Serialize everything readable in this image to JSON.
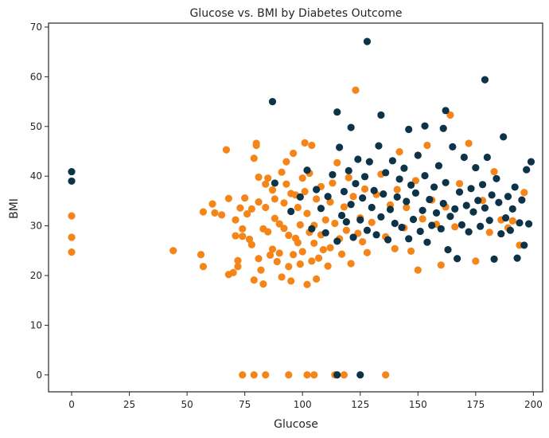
{
  "chart_data": {
    "type": "scatter",
    "title": "Glucose vs. BMI by Diabetes Outcome",
    "xlabel": "Glucose",
    "ylabel": "BMI",
    "xlim": [
      -10,
      204
    ],
    "ylim": [
      -3.4,
      70.8
    ],
    "xticks": [
      0,
      25,
      50,
      75,
      100,
      125,
      150,
      175,
      200
    ],
    "yticks": [
      0,
      10,
      20,
      30,
      40,
      50,
      60,
      70
    ],
    "grid": false,
    "legend": "none",
    "series": [
      {
        "color": "#f58518",
        "points": [
          [
            0,
            32
          ],
          [
            0,
            27.7
          ],
          [
            0,
            24.7
          ],
          [
            44,
            25
          ],
          [
            56,
            24.2
          ],
          [
            57,
            21.8
          ],
          [
            57,
            32.8
          ],
          [
            61,
            34.4
          ],
          [
            62,
            32.6
          ],
          [
            65,
            32.2
          ],
          [
            67,
            45.3
          ],
          [
            68,
            20.2
          ],
          [
            68,
            35.5
          ],
          [
            70,
            20.6
          ],
          [
            71,
            28
          ],
          [
            71,
            31.2
          ],
          [
            72,
            21.8
          ],
          [
            72,
            23
          ],
          [
            73,
            33.6
          ],
          [
            74,
            29.4
          ],
          [
            74,
            27.9
          ],
          [
            75,
            35.6
          ],
          [
            76,
            32.4
          ],
          [
            77,
            27.3
          ],
          [
            78,
            33.4
          ],
          [
            78,
            26.2
          ],
          [
            79,
            43.6
          ],
          [
            79,
            19.1
          ],
          [
            80,
            46.6
          ],
          [
            80,
            46.2
          ],
          [
            81,
            39.8
          ],
          [
            81,
            34.8
          ],
          [
            81,
            23.4
          ],
          [
            82,
            21.1
          ],
          [
            83,
            18.3
          ],
          [
            83,
            29.4
          ],
          [
            84,
            33.7
          ],
          [
            84,
            38.4
          ],
          [
            85,
            39.6
          ],
          [
            85,
            28.8
          ],
          [
            86,
            24.1
          ],
          [
            87,
            25.3
          ],
          [
            87,
            37.2
          ],
          [
            88,
            35.4
          ],
          [
            88,
            31.5
          ],
          [
            89,
            22.8
          ],
          [
            90,
            24.5
          ],
          [
            90,
            30.4
          ],
          [
            91,
            40.8
          ],
          [
            91,
            19.7
          ],
          [
            92,
            34.6
          ],
          [
            92,
            29.5
          ],
          [
            93,
            38.4
          ],
          [
            93,
            42.9
          ],
          [
            94,
            21.8
          ],
          [
            94,
            28.1
          ],
          [
            95,
            36.5
          ],
          [
            95,
            18.9
          ],
          [
            96,
            24.2
          ],
          [
            96,
            44.6
          ],
          [
            97,
            36.2
          ],
          [
            97,
            27.5
          ],
          [
            98,
            26.6
          ],
          [
            98,
            33.7
          ],
          [
            99,
            22.3
          ],
          [
            99,
            30.2
          ],
          [
            100,
            39.6
          ],
          [
            100,
            24.8
          ],
          [
            101,
            46.7
          ],
          [
            101,
            36.9
          ],
          [
            102,
            18.2
          ],
          [
            102,
            32.5
          ],
          [
            103,
            28.7
          ],
          [
            103,
            40.6
          ],
          [
            104,
            46.2
          ],
          [
            104,
            22.9
          ],
          [
            105,
            30.1
          ],
          [
            105,
            26.5
          ],
          [
            106,
            35.4
          ],
          [
            106,
            19.3
          ],
          [
            107,
            23.5
          ],
          [
            108,
            37.9
          ],
          [
            108,
            28.2
          ],
          [
            109,
            25.2
          ],
          [
            110,
            31.2
          ],
          [
            111,
            21.9
          ],
          [
            112,
            34.8
          ],
          [
            112,
            25.6
          ],
          [
            113,
            38.6
          ],
          [
            114,
            30.5
          ],
          [
            115,
            42.7
          ],
          [
            116,
            27.4
          ],
          [
            117,
            24.3
          ],
          [
            118,
            33.8
          ],
          [
            119,
            29.1
          ],
          [
            120,
            39.7
          ],
          [
            121,
            22.4
          ],
          [
            122,
            35.9
          ],
          [
            123,
            57.3
          ],
          [
            124,
            28.5
          ],
          [
            125,
            31.6
          ],
          [
            126,
            26.8
          ],
          [
            127,
            37.4
          ],
          [
            128,
            24.6
          ],
          [
            130,
            30.7
          ],
          [
            132,
            36.3
          ],
          [
            134,
            40.4
          ],
          [
            136,
            27.8
          ],
          [
            138,
            34.2
          ],
          [
            140,
            25.4
          ],
          [
            141,
            37.3
          ],
          [
            142,
            44.9
          ],
          [
            144,
            29.6
          ],
          [
            145,
            33.7
          ],
          [
            147,
            24.9
          ],
          [
            149,
            39.1
          ],
          [
            150,
            21.1
          ],
          [
            152,
            31.4
          ],
          [
            154,
            46.2
          ],
          [
            156,
            35.2
          ],
          [
            158,
            30.3
          ],
          [
            160,
            22.1
          ],
          [
            162,
            33.8
          ],
          [
            164,
            52.3
          ],
          [
            166,
            29.8
          ],
          [
            168,
            38.5
          ],
          [
            172,
            46.6
          ],
          [
            175,
            22.9
          ],
          [
            178,
            35.1
          ],
          [
            181,
            28.7
          ],
          [
            183,
            40.9
          ],
          [
            186,
            31.2
          ],
          [
            189,
            29.6
          ],
          [
            191,
            31.0
          ],
          [
            194,
            26.1
          ],
          [
            196,
            36.7
          ],
          [
            74,
            0
          ],
          [
            79,
            0
          ],
          [
            84,
            0
          ],
          [
            94,
            0
          ],
          [
            102,
            0
          ],
          [
            105,
            0
          ],
          [
            114,
            0
          ],
          [
            118,
            0
          ],
          [
            136,
            0
          ]
        ]
      },
      {
        "color": "#0d3349",
        "points": [
          [
            0,
            40.9
          ],
          [
            0,
            39
          ],
          [
            87,
            55
          ],
          [
            115,
            52.9
          ],
          [
            121,
            49.8
          ],
          [
            128,
            67.1
          ],
          [
            134,
            52.3
          ],
          [
            146,
            49.4
          ],
          [
            153,
            50.1
          ],
          [
            161,
            49.6
          ],
          [
            162,
            53.2
          ],
          [
            179,
            59.4
          ],
          [
            88,
            38.6
          ],
          [
            95,
            32.9
          ],
          [
            99,
            35.8
          ],
          [
            102,
            41.2
          ],
          [
            104,
            29.4
          ],
          [
            106,
            37.3
          ],
          [
            108,
            33.5
          ],
          [
            110,
            28.6
          ],
          [
            111,
            35.9
          ],
          [
            113,
            40.3
          ],
          [
            115,
            26.9
          ],
          [
            116,
            45.8
          ],
          [
            117,
            32.1
          ],
          [
            118,
            36.9
          ],
          [
            119,
            30.8
          ],
          [
            120,
            41.1
          ],
          [
            121,
            34.3
          ],
          [
            122,
            27.7
          ],
          [
            123,
            38.5
          ],
          [
            124,
            43.4
          ],
          [
            125,
            31.2
          ],
          [
            126,
            35.6
          ],
          [
            127,
            39.9
          ],
          [
            128,
            29.1
          ],
          [
            129,
            42.9
          ],
          [
            130,
            33.7
          ],
          [
            131,
            37.1
          ],
          [
            132,
            28.2
          ],
          [
            133,
            46.1
          ],
          [
            134,
            31.8
          ],
          [
            135,
            36.4
          ],
          [
            136,
            40.7
          ],
          [
            137,
            27.2
          ],
          [
            138,
            33.3
          ],
          [
            139,
            43.1
          ],
          [
            140,
            30.5
          ],
          [
            141,
            35.8
          ],
          [
            142,
            39.4
          ],
          [
            143,
            29.7
          ],
          [
            144,
            41.6
          ],
          [
            145,
            34.9
          ],
          [
            146,
            27.4
          ],
          [
            147,
            38.2
          ],
          [
            148,
            31.3
          ],
          [
            149,
            36.6
          ],
          [
            150,
            44.2
          ],
          [
            151,
            28.9
          ],
          [
            152,
            33.1
          ],
          [
            153,
            40.1
          ],
          [
            154,
            26.7
          ],
          [
            155,
            35.3
          ],
          [
            156,
            30.1
          ],
          [
            157,
            37.8
          ],
          [
            158,
            32.6
          ],
          [
            159,
            42.1
          ],
          [
            160,
            29.4
          ],
          [
            161,
            34.5
          ],
          [
            162,
            38.7
          ],
          [
            163,
            25.2
          ],
          [
            164,
            31.9
          ],
          [
            165,
            45.9
          ],
          [
            166,
            33.4
          ],
          [
            167,
            23.4
          ],
          [
            168,
            36.8
          ],
          [
            169,
            30.2
          ],
          [
            170,
            43.8
          ],
          [
            171,
            34.1
          ],
          [
            172,
            28.8
          ],
          [
            173,
            37.5
          ],
          [
            174,
            32.8
          ],
          [
            175,
            41.7
          ],
          [
            176,
            35.1
          ],
          [
            177,
            29.9
          ],
          [
            178,
            38.3
          ],
          [
            179,
            33.6
          ],
          [
            180,
            43.8
          ],
          [
            181,
            31.1
          ],
          [
            182,
            36.2
          ],
          [
            183,
            23.3
          ],
          [
            184,
            39.5
          ],
          [
            185,
            34.7
          ],
          [
            186,
            28.4
          ],
          [
            187,
            47.9
          ],
          [
            188,
            31.6
          ],
          [
            189,
            35.9
          ],
          [
            190,
            29.1
          ],
          [
            191,
            33.4
          ],
          [
            192,
            37.8
          ],
          [
            193,
            23.5
          ],
          [
            194,
            30.6
          ],
          [
            195,
            35.2
          ],
          [
            196,
            26.1
          ],
          [
            197,
            41.3
          ],
          [
            198,
            30.4
          ],
          [
            199,
            42.9
          ],
          [
            115,
            0
          ],
          [
            125,
            0
          ]
        ]
      }
    ]
  }
}
